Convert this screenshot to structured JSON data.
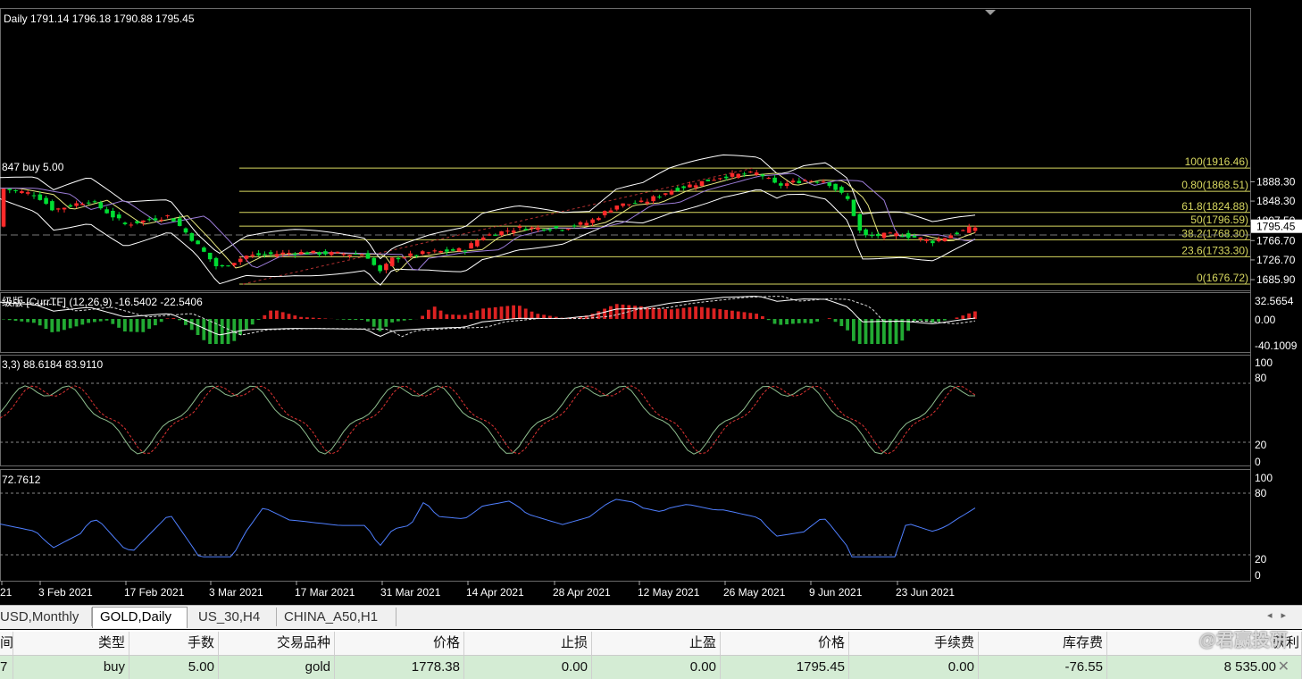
{
  "main_chart": {
    "header": "Daily  1791.14 1796.18 1790.88 1795.45",
    "order_label": "847 buy 5.00",
    "price_labels": [
      "1888.30",
      "1848.30",
      "1807.50",
      "1766.70",
      "1726.70",
      "1685.90"
    ],
    "current_price": "1795.45",
    "fib_levels": [
      {
        "label": "100(1916.46)",
        "price": 1916.46
      },
      {
        "label": "0.80(1868.51)",
        "price": 1868.51
      },
      {
        "label": "61.8(1824.88)",
        "price": 1824.88
      },
      {
        "label": "50(1796.59)",
        "price": 1796.59
      },
      {
        "label": "38.2(1768.30)",
        "price": 1768.3
      },
      {
        "label": "23.6(1733.30)",
        "price": 1733.3
      },
      {
        "label": "0(1676.72)",
        "price": 1676.72
      }
    ]
  },
  "macd_panel": {
    "header": "级版 [CurrTF] (12,26,9) -16.5402 -22.5406",
    "labels": [
      "32.5654",
      "0.00",
      "-40.1009"
    ]
  },
  "stoch_panel": {
    "header": "3,3) 88.6184 83.9110",
    "labels": [
      "100",
      "80",
      "20",
      "0"
    ]
  },
  "rsi_panel": {
    "header": "72.7612",
    "labels": [
      "100",
      "80",
      "20",
      "0"
    ]
  },
  "date_labels": [
    "21",
    "3 Feb 2021",
    "17 Feb 2021",
    "3 Mar 2021",
    "17 Mar 2021",
    "31 Mar 2021",
    "14 Apr 2021",
    "28 Apr 2021",
    "12 May 2021",
    "26 May 2021",
    "9 Jun 2021",
    "23 Jun 2021"
  ],
  "tabs": [
    {
      "label": "USD,Monthly",
      "active": false
    },
    {
      "label": "GOLD,Daily",
      "active": true
    },
    {
      "label": "US_30,H4",
      "active": false
    },
    {
      "label": "CHINA_A50,H1",
      "active": false
    }
  ],
  "table": {
    "headers": [
      "间",
      "类型",
      "手数",
      "交易品种",
      "价格",
      "止损",
      "止盈",
      "价格",
      "手续费",
      "库存费",
      "获利"
    ],
    "row": [
      "7",
      "buy",
      "5.00",
      "gold",
      "1778.38",
      "0.00",
      "0.00",
      "1795.45",
      "0.00",
      "-76.55",
      "8 535.00"
    ]
  },
  "watermark": "@君赢投研",
  "colors": {
    "bull": "#ff2a2a",
    "bear": "#00dd33",
    "fib": "#d8d860",
    "bands": "#ffffff"
  }
}
